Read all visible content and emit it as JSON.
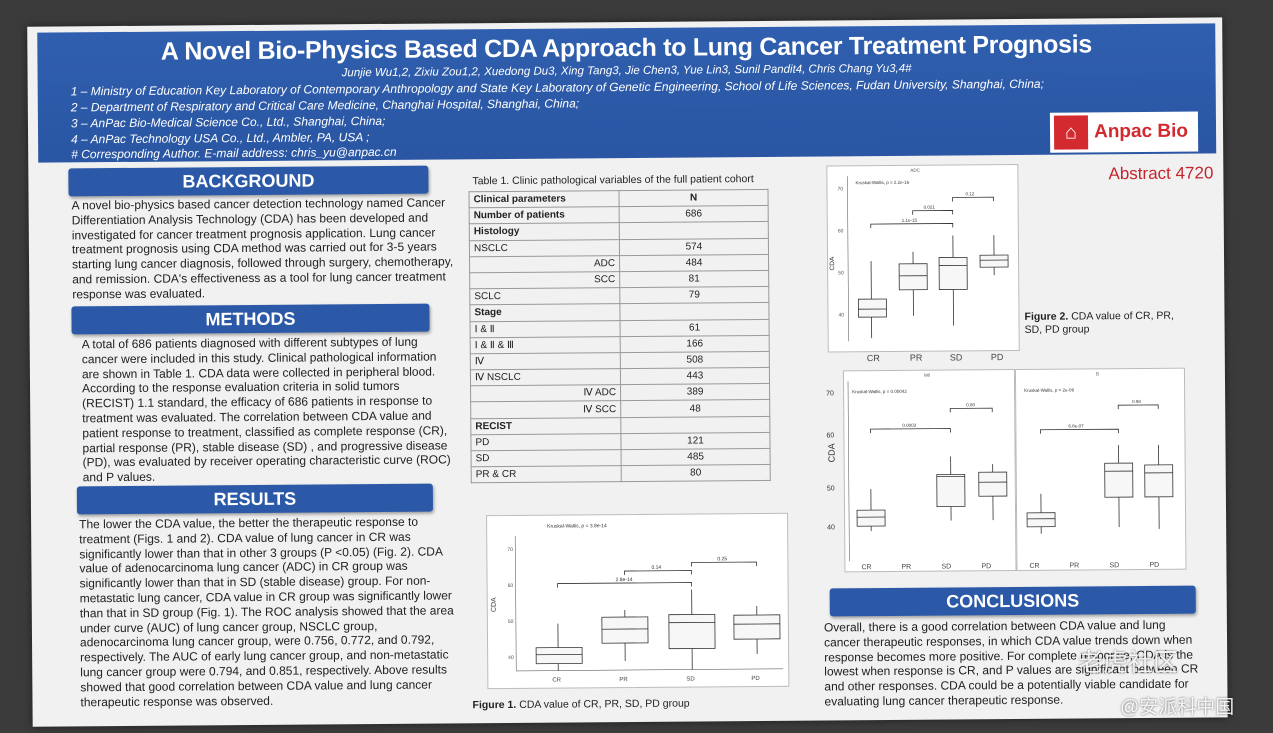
{
  "header": {
    "title": "A Novel Bio-Physics Based CDA Approach to Lung Cancer Treatment Prognosis",
    "authors": "Junjie Wu1,2, Zixiu Zou1,2, Xuedong Du3, Xing Tang3, Jie Chen3, Yue Lin3, Sunil Pandit4, Chris Chang Yu3,4#",
    "affiliations": [
      "1 – Ministry of Education Key Laboratory of Contemporary Anthropology and State Key Laboratory of Genetic Engineering, School of Life Sciences, Fudan University, Shanghai, China;",
      "2 – Department of Respiratory and Critical Care Medicine, Changhai Hospital, Shanghai, China;",
      "3 – AnPac Bio-Medical Science Co., Ltd., Shanghai, China;",
      "4 – AnPac Technology USA Co., Ltd., Ambler, PA, USA ;",
      "# Corresponding Author.  E-mail address: chris_yu@anpac.cn"
    ],
    "logo_text": "Anpac Bio",
    "abstract_label": "Abstract 4720"
  },
  "sections": {
    "background": {
      "heading": "BACKGROUND",
      "text": "A novel bio-physics based cancer detection technology named Cancer Differentiation Analysis Technology (CDA) has been developed and investigated for cancer treatment prognosis application.  Lung cancer treatment prognosis using CDA method was carried out for 3-5 years starting lung cancer diagnosis, followed through surgery, chemotherapy, and remission.  CDA's effectiveness as a tool for lung cancer treatment response was evaluated."
    },
    "methods": {
      "heading": "METHODS",
      "text": "A total of 686 patients diagnosed with different subtypes of lung cancer were included in this study. Clinical pathological information are shown in Table 1. CDA data were collected in peripheral blood. According to the response evaluation criteria in solid tumors (RECIST) 1.1 standard, the efficacy of 686 patients in response to treatment was evaluated. The correlation between CDA value and patient response to treatment, classified as complete response (CR), partial response (PR), stable disease (SD) , and progressive disease (PD), was evaluated by receiver operating characteristic curve (ROC) and P values."
    },
    "results": {
      "heading": "RESULTS",
      "text": "The lower the CDA value, the better the therapeutic response to treatment (Figs. 1 and 2). CDA value of lung cancer in CR was significantly lower than that in other 3 groups (P <0.05) (Fig. 2). CDA value of adenocarcinoma lung cancer (ADC) in CR group was significantly lower than that in SD (stable disease) group. For non-metastatic lung cancer, CDA value in CR group was significantly lower than that in SD group (Fig. 1). The ROC analysis showed that the area under curve (AUC) of lung cancer group, NSCLC group, adenocarcinoma lung cancer group, were 0.756, 0.772, and 0.792, respectively. The AUC of early lung cancer group, and non-metastatic lung cancer group were 0.794, and 0.851, respectively. Above results showed that good correlation between CDA value and lung cancer therapeutic response was observed."
    },
    "conclusions": {
      "heading": "CONCLUSIONS",
      "text": "Overall, there is a good correlation between CDA value and lung cancer therapeutic responses, in which CDA value trends down when response becomes more positive. For complete response, CDA is the lowest when response is CR, and P values are significant between CR and other responses. CDA could be a potentially viable candidate for evaluating lung cancer therapeutic response."
    }
  },
  "table1": {
    "title": "Table 1.  Clinic pathological variables of the full patient cohort",
    "header": [
      "Clinical parameters",
      "N"
    ],
    "rows": [
      {
        "label": "Number of patients",
        "value": "686",
        "style": "bold"
      },
      {
        "label": "Histology",
        "value": "",
        "style": "bold"
      },
      {
        "label": "NSCLC",
        "value": "574",
        "style": ""
      },
      {
        "label": "ADC",
        "value": "484",
        "style": "right"
      },
      {
        "label": "SCC",
        "value": "81",
        "style": "right"
      },
      {
        "label": "SCLC",
        "value": "79",
        "style": ""
      },
      {
        "label": "Stage",
        "value": "",
        "style": "bold"
      },
      {
        "label": "Ⅰ & Ⅱ",
        "value": "61",
        "style": ""
      },
      {
        "label": "Ⅰ & Ⅱ & Ⅲ",
        "value": "166",
        "style": ""
      },
      {
        "label": "Ⅳ",
        "value": "508",
        "style": ""
      },
      {
        "label": "Ⅳ NSCLC",
        "value": "443",
        "style": ""
      },
      {
        "label": "Ⅳ ADC",
        "value": "389",
        "style": "right"
      },
      {
        "label": "Ⅳ SCC",
        "value": "48",
        "style": "right"
      },
      {
        "label": "RECIST",
        "value": "",
        "style": "bold"
      },
      {
        "label": "PD",
        "value": "121",
        "style": ""
      },
      {
        "label": "SD",
        "value": "485",
        "style": ""
      },
      {
        "label": "PR & CR",
        "value": "80",
        "style": ""
      }
    ]
  },
  "figures": {
    "fig1": {
      "caption_label": "Figure 1.",
      "caption": "CDA value of  CR, PR, SD, PD group",
      "stat": "Kruskal-Wallis, p = 3.8e-14",
      "ylabel": "CDA",
      "categories": [
        "CR",
        "PR",
        "SD",
        "PD"
      ],
      "pvalues": [
        "2.8e-14",
        "0.14",
        "0.25"
      ],
      "yticks": [
        "40",
        "50",
        "60",
        "70"
      ]
    },
    "fig2": {
      "caption_label": "Figure 2.",
      "caption": "CDA value of  CR, PR, SD, PD group",
      "panel_title": "ADC",
      "stat": "Kruskal-Wallis, p = 2.2e-16",
      "ylabel": "CDA",
      "categories": [
        "CR",
        "PR",
        "SD",
        "PD"
      ],
      "pvalues": [
        "1.1e-15",
        "0.021",
        "0.12"
      ],
      "yticks": [
        "40",
        "50",
        "60",
        "70"
      ]
    },
    "fig3a": {
      "panel_title": "M0",
      "stat": "Kruskal-Wallis, p = 0.00042",
      "ylabel": "CDA",
      "categories": [
        "CR",
        "PR",
        "SD",
        "PD"
      ],
      "pvalues": [
        "0.0003",
        "0.80"
      ],
      "yticks": [
        "40",
        "50",
        "60",
        "70"
      ]
    },
    "fig3b": {
      "panel_title": "B",
      "stat": "Kruskal-Wallis, p = 2e-06",
      "categories": [
        "CR",
        "PR",
        "SD",
        "PD"
      ],
      "pvalues": [
        "6.8e-07",
        "0.98"
      ]
    }
  },
  "watermark": {
    "line1": "老虎社区",
    "line2": "@安派科中国"
  }
}
